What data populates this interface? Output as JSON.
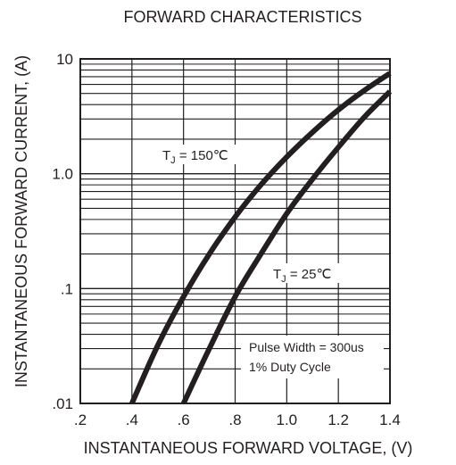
{
  "chart_data": {
    "type": "line",
    "title": "FORWARD CHARACTERISTICS",
    "xlabel": "INSTANTANEOUS FORWARD VOLTAGE, (V)",
    "ylabel": "INSTANTANEOUS FORWARD CURRENT, (A)",
    "xlim": [
      0.2,
      1.4
    ],
    "ylim": [
      0.01,
      10
    ],
    "yscale": "log",
    "grid": true,
    "x_ticks": [
      ".2",
      ".4",
      ".6",
      ".8",
      "1.0",
      "1.2",
      "1.4"
    ],
    "y_ticks": [
      "10",
      "1.0",
      ".1",
      ".01"
    ],
    "series": [
      {
        "name": "TJ = 150℃",
        "label_main": "T",
        "label_sub": "J",
        "label_rest": " = 150℃",
        "x": [
          0.4,
          0.5,
          0.6,
          0.7,
          0.8,
          0.9,
          1.0,
          1.1,
          1.2,
          1.3,
          1.4
        ],
        "y": [
          0.01,
          0.032,
          0.085,
          0.2,
          0.42,
          0.8,
          1.4,
          2.3,
          3.6,
          5.3,
          7.5
        ]
      },
      {
        "name": "TJ = 25℃",
        "label_main": "T",
        "label_sub": "J",
        "label_rest": " = 25℃",
        "x": [
          0.6,
          0.7,
          0.8,
          0.9,
          1.0,
          1.1,
          1.2,
          1.3,
          1.4
        ],
        "y": [
          0.01,
          0.03,
          0.085,
          0.2,
          0.45,
          0.9,
          1.7,
          3.1,
          5.2
        ]
      }
    ],
    "annotations": [
      "Pulse Width = 300us",
      "1% Duty Cycle"
    ]
  }
}
